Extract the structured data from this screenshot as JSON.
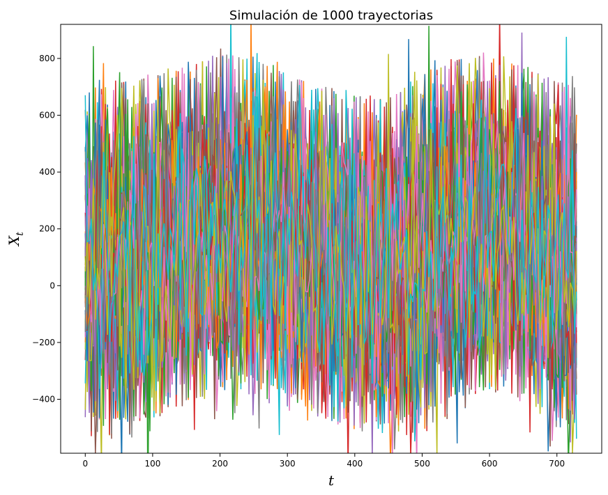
{
  "chart_data": {
    "type": "line",
    "title": "Simulación de 1000 trayectorias",
    "xlabel": "t",
    "ylabel_base": "X",
    "ylabel_sub": "t",
    "xlim": [
      -36.5,
      766.5
    ],
    "ylim": [
      -590,
      920
    ],
    "x_range": [
      0,
      730
    ],
    "series_count": 1000,
    "xticks": [
      0,
      100,
      200,
      300,
      400,
      500,
      600,
      700
    ],
    "yticks": [
      -400,
      -200,
      0,
      200,
      400,
      600,
      800
    ],
    "envelope_samples": {
      "x": [
        0,
        50,
        100,
        150,
        200,
        250,
        300,
        350,
        400,
        450,
        500,
        550,
        600,
        650,
        700,
        730
      ],
      "upper": [
        580,
        620,
        640,
        680,
        720,
        700,
        650,
        600,
        580,
        560,
        640,
        700,
        720,
        680,
        620,
        600
      ],
      "lower": [
        -430,
        -440,
        -420,
        -380,
        -320,
        -300,
        -340,
        -420,
        -460,
        -470,
        -420,
        -350,
        -320,
        -360,
        -440,
        -480
      ]
    },
    "grid": false,
    "legend": "none",
    "palette": [
      "#1f77b4",
      "#ff7f0e",
      "#2ca02c",
      "#d62728",
      "#9467bd",
      "#8c564b",
      "#e377c2",
      "#7f7f7f",
      "#bcbd22",
      "#17becf"
    ]
  }
}
